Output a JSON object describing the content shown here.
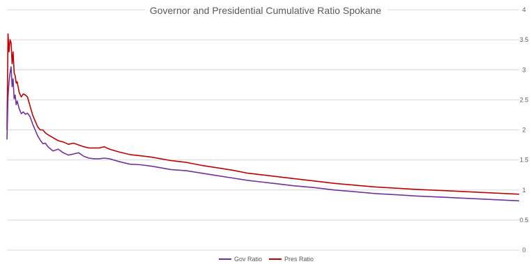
{
  "chart_data": {
    "type": "line",
    "title": "Governor and Presidential Cumulative Ratio Spokane",
    "xlabel": "",
    "ylabel": "",
    "ylim": [
      0,
      4
    ],
    "y_ticks": [
      "0",
      "0.5",
      "1",
      "1.5",
      "2",
      "2.5",
      "3",
      "3.5",
      "4"
    ],
    "y_axis_side": "right",
    "grid": true,
    "legend_position": "bottom",
    "x_labels_shown": false,
    "x_range": [
      0,
      1000
    ],
    "series": [
      {
        "name": "Gov Ratio",
        "color": "#7030A0",
        "x": [
          0,
          2,
          4,
          6,
          8,
          10,
          12,
          14,
          16,
          18,
          20,
          24,
          28,
          32,
          36,
          40,
          45,
          50,
          55,
          60,
          65,
          70,
          75,
          80,
          90,
          100,
          110,
          120,
          130,
          140,
          150,
          160,
          170,
          180,
          190,
          200,
          220,
          240,
          260,
          280,
          300,
          320,
          350,
          380,
          410,
          440,
          470,
          500,
          530,
          560,
          600,
          640,
          680,
          720,
          760,
          800,
          850,
          900,
          950,
          1000
        ],
        "values": [
          1.84,
          2.55,
          2.8,
          2.95,
          3.05,
          2.72,
          2.85,
          2.52,
          2.58,
          2.42,
          2.48,
          2.35,
          2.27,
          2.3,
          2.26,
          2.28,
          2.22,
          2.1,
          2.0,
          1.9,
          1.83,
          1.77,
          1.78,
          1.72,
          1.65,
          1.68,
          1.62,
          1.58,
          1.6,
          1.62,
          1.56,
          1.53,
          1.52,
          1.52,
          1.53,
          1.52,
          1.47,
          1.43,
          1.42,
          1.4,
          1.37,
          1.34,
          1.32,
          1.28,
          1.24,
          1.2,
          1.16,
          1.13,
          1.1,
          1.07,
          1.04,
          1.0,
          0.97,
          0.94,
          0.92,
          0.9,
          0.88,
          0.86,
          0.84,
          0.82
        ]
      },
      {
        "name": "Pres Ratio",
        "color": "#C00000",
        "x": [
          0,
          2,
          4,
          6,
          8,
          10,
          12,
          14,
          16,
          18,
          20,
          24,
          28,
          32,
          36,
          40,
          45,
          50,
          55,
          60,
          65,
          70,
          75,
          80,
          90,
          100,
          110,
          120,
          130,
          140,
          150,
          160,
          170,
          180,
          190,
          200,
          220,
          240,
          260,
          280,
          300,
          320,
          350,
          380,
          410,
          440,
          470,
          500,
          530,
          560,
          600,
          640,
          680,
          720,
          760,
          800,
          850,
          900,
          950,
          1000
        ],
        "values": [
          2.0,
          3.6,
          3.3,
          3.5,
          3.45,
          3.1,
          3.3,
          2.95,
          2.9,
          2.78,
          2.8,
          2.62,
          2.55,
          2.6,
          2.58,
          2.55,
          2.4,
          2.25,
          2.15,
          2.05,
          2.0,
          2.0,
          1.95,
          1.92,
          1.87,
          1.82,
          1.8,
          1.76,
          1.78,
          1.75,
          1.72,
          1.7,
          1.7,
          1.7,
          1.72,
          1.68,
          1.63,
          1.59,
          1.57,
          1.55,
          1.52,
          1.49,
          1.46,
          1.41,
          1.37,
          1.33,
          1.28,
          1.25,
          1.22,
          1.19,
          1.15,
          1.11,
          1.08,
          1.05,
          1.03,
          1.01,
          0.99,
          0.97,
          0.95,
          0.93
        ]
      }
    ]
  }
}
